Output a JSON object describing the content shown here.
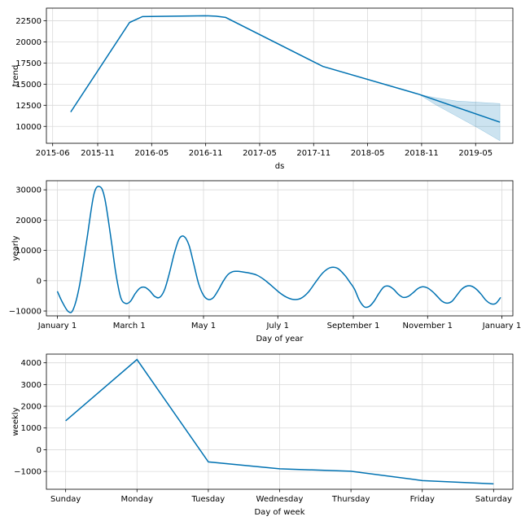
{
  "chart_data": [
    {
      "type": "line",
      "xlabel": "ds",
      "ylabel": "trend",
      "grid": true,
      "xlim": [
        2015.4,
        2019.72
      ],
      "ylim": [
        8000,
        24000
      ],
      "xticks": [
        {
          "v": 2015.458,
          "label": "2015-06"
        },
        {
          "v": 2015.875,
          "label": "2015-11"
        },
        {
          "v": 2016.375,
          "label": "2016-05"
        },
        {
          "v": 2016.875,
          "label": "2016-11"
        },
        {
          "v": 2017.375,
          "label": "2017-05"
        },
        {
          "v": 2017.875,
          "label": "2017-11"
        },
        {
          "v": 2018.375,
          "label": "2018-05"
        },
        {
          "v": 2018.875,
          "label": "2018-11"
        },
        {
          "v": 2019.375,
          "label": "2019-05"
        }
      ],
      "yticks": [
        {
          "v": 10000,
          "label": "10000"
        },
        {
          "v": 12500,
          "label": "12500"
        },
        {
          "v": 15000,
          "label": "15000"
        },
        {
          "v": 17500,
          "label": "17500"
        },
        {
          "v": 20000,
          "label": "20000"
        },
        {
          "v": 22500,
          "label": "22500"
        }
      ],
      "series": [
        {
          "name": "trend",
          "x": [
            2015.625,
            2016.17,
            2016.29,
            2016.87,
            2016.97,
            2017.06,
            2017.96,
            2018.85,
            2019.6
          ],
          "y": [
            11700,
            22300,
            23000,
            23100,
            23050,
            22900,
            17100,
            13800,
            10500
          ]
        }
      ],
      "band": {
        "x": [
          2018.85,
          2019.0,
          2019.2,
          2019.4,
          2019.6
        ],
        "upper": [
          13800,
          13400,
          13000,
          12850,
          12700
        ],
        "lower": [
          13800,
          12600,
          11200,
          9800,
          8300
        ]
      }
    },
    {
      "type": "line",
      "xlabel": "Day of year",
      "ylabel": "yearly",
      "grid": true,
      "xlim": [
        -9,
        374
      ],
      "ylim": [
        -11600,
        33000
      ],
      "xticks": [
        {
          "v": 0,
          "label": "January 1"
        },
        {
          "v": 59,
          "label": "March 1"
        },
        {
          "v": 120,
          "label": "May 1"
        },
        {
          "v": 181,
          "label": "July 1"
        },
        {
          "v": 243,
          "label": "September 1"
        },
        {
          "v": 304,
          "label": "November 1"
        },
        {
          "v": 365,
          "label": "January 1"
        }
      ],
      "yticks": [
        {
          "v": -10000,
          "label": "−10000"
        },
        {
          "v": 0,
          "label": "0"
        },
        {
          "v": 10000,
          "label": "10000"
        },
        {
          "v": 20000,
          "label": "20000"
        },
        {
          "v": 30000,
          "label": "30000"
        }
      ],
      "series": [
        {
          "name": "yearly",
          "x": [
            0,
            4,
            9,
            13,
            18,
            24,
            30,
            35,
            39,
            44,
            48,
            52,
            56,
            60,
            64,
            68,
            72,
            76,
            80,
            84,
            88,
            92,
            96,
            100,
            104,
            108,
            112,
            116,
            120,
            124,
            128,
            132,
            136,
            140,
            144,
            148,
            152,
            158,
            164,
            170,
            176,
            182,
            188,
            194,
            200,
            206,
            212,
            218,
            224,
            230,
            236,
            240,
            244,
            248,
            252,
            256,
            260,
            264,
            268,
            272,
            276,
            280,
            284,
            288,
            292,
            296,
            300,
            304,
            308,
            312,
            316,
            320,
            324,
            328,
            332,
            336,
            340,
            344,
            348,
            352,
            356,
            360,
            364
          ],
          "y": [
            -3500,
            -7000,
            -10200,
            -9500,
            -2000,
            13000,
            28500,
            31000,
            27000,
            14000,
            2500,
            -5500,
            -7500,
            -6800,
            -4200,
            -2400,
            -2200,
            -3400,
            -5200,
            -5500,
            -3000,
            2500,
            9000,
            13800,
            14600,
            11800,
            5500,
            -1000,
            -4800,
            -6200,
            -5600,
            -3200,
            -300,
            2000,
            3000,
            3100,
            2900,
            2500,
            1800,
            300,
            -1700,
            -3800,
            -5400,
            -6200,
            -5800,
            -3800,
            -500,
            2600,
            4300,
            4100,
            1800,
            -400,
            -2800,
            -6500,
            -8600,
            -8500,
            -6800,
            -4200,
            -2100,
            -1800,
            -2800,
            -4500,
            -5500,
            -5200,
            -4000,
            -2600,
            -2000,
            -2400,
            -3600,
            -5200,
            -6800,
            -7400,
            -6800,
            -4800,
            -2800,
            -1800,
            -1800,
            -2800,
            -4500,
            -6500,
            -7600,
            -7500,
            -5500
          ]
        }
      ]
    },
    {
      "type": "line",
      "xlabel": "Day of week",
      "ylabel": "weekly",
      "grid": true,
      "xlim": [
        -0.27,
        6.27
      ],
      "ylim": [
        -1820,
        4400
      ],
      "categories": [
        "Sunday",
        "Monday",
        "Tuesday",
        "Wednesday",
        "Thursday",
        "Friday",
        "Saturday"
      ],
      "yticks": [
        {
          "v": -1000,
          "label": "−1000"
        },
        {
          "v": 0,
          "label": "0"
        },
        {
          "v": 1000,
          "label": "1000"
        },
        {
          "v": 2000,
          "label": "2000"
        },
        {
          "v": 3000,
          "label": "3000"
        },
        {
          "v": 4000,
          "label": "4000"
        }
      ],
      "series": [
        {
          "name": "weekly",
          "values": [
            1330,
            4150,
            -560,
            -880,
            -990,
            -1420,
            -1570
          ]
        }
      ]
    }
  ]
}
